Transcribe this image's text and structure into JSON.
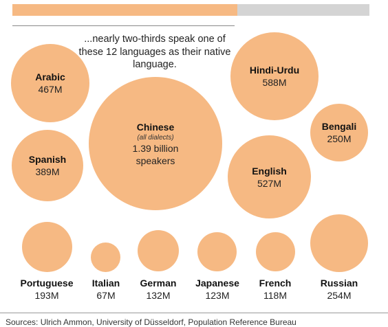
{
  "colors": {
    "bubble": "#f6b983",
    "bar_fill": "#f6b983",
    "bar_track": "#d4d4d4"
  },
  "progress_bar": {
    "filled_fraction": 0.63
  },
  "intro_text": "...nearly two-thirds speak one of these 12 languages as their native language.",
  "languages": [
    {
      "key": "arabic",
      "name": "Arabic",
      "value": "467M"
    },
    {
      "key": "chinese",
      "name": "Chinese",
      "note": "(all dialects)",
      "value_line1": "1.39 billion",
      "value_line2": "speakers"
    },
    {
      "key": "hindi-urdu",
      "name": "Hindi-Urdu",
      "value": "588M"
    },
    {
      "key": "bengali",
      "name": "Bengali",
      "value": "250M"
    },
    {
      "key": "spanish",
      "name": "Spanish",
      "value": "389M"
    },
    {
      "key": "english",
      "name": "English",
      "value": "527M"
    },
    {
      "key": "portuguese",
      "name": "Portuguese",
      "value": "193M"
    },
    {
      "key": "italian",
      "name": "Italian",
      "value": "67M"
    },
    {
      "key": "german",
      "name": "German",
      "value": "132M"
    },
    {
      "key": "japanese",
      "name": "Japanese",
      "value": "123M"
    },
    {
      "key": "french",
      "name": "French",
      "value": "118M"
    },
    {
      "key": "russian",
      "name": "Russian",
      "value": "254M"
    }
  ],
  "source": "Sources: Ulrich Ammon, University of Düsseldorf, Population Reference Bureau"
}
